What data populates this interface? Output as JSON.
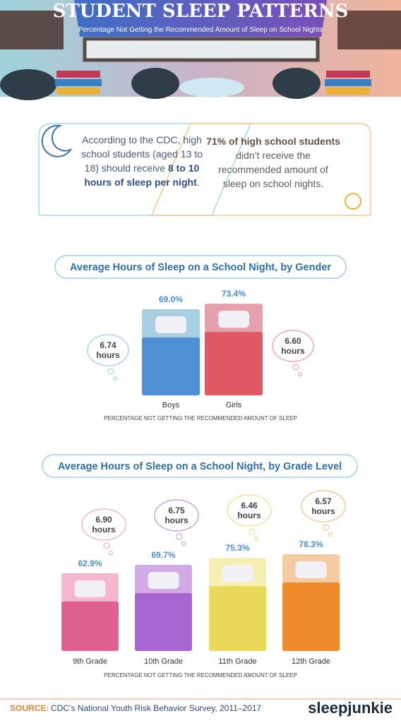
{
  "header": {
    "title": "STUDENT SLEEP PATTERNS",
    "subtitle": "Percentage Not Getting the Recommended Amount of Sleep on School Nights"
  },
  "intro": {
    "left": [
      "According to the CDC, high school students (aged 13 to 18) should receive ",
      "8 to 10 hours of sleep per night",
      "."
    ],
    "right": [
      "71% of high school students",
      " didn’t receive the recommended amount of sleep on school nights."
    ]
  },
  "chart_data": [
    {
      "type": "bar",
      "title": "Average Hours of Sleep on a School Night, by Gender",
      "categories": [
        "Boys",
        "Girls"
      ],
      "values": [
        69.0,
        73.4
      ],
      "value_labels": [
        "69.0%",
        "73.4%"
      ],
      "colors": [
        "#4f8fd6",
        "#e05a66"
      ],
      "head_colors": [
        "#a9d0e2",
        "#e6a2ac"
      ],
      "annotations": [
        "6.74 hours",
        "6.60 hours"
      ],
      "note": "PERCENTAGE NOT GETTING THE RECOMMENDED AMOUNT OF SLEEP"
    },
    {
      "type": "bar",
      "title": "Average Hours of Sleep on a School Night, by Grade Level",
      "categories": [
        "9th Grade",
        "10th Grade",
        "11th Grade",
        "12th Grade"
      ],
      "values": [
        62.9,
        69.7,
        75.3,
        78.3
      ],
      "value_labels": [
        "62.9%",
        "69.7%",
        "75.3%",
        "78.3%"
      ],
      "colors": [
        "#e06092",
        "#a866d2",
        "#e8d95a",
        "#ee8a2a"
      ],
      "head_colors": [
        "#f5b6d0",
        "#d2aae6",
        "#f6efb2",
        "#f4cba2"
      ],
      "annotations": [
        "6.90 hours",
        "6.75 hours",
        "6.46 hours",
        "6.57 hours"
      ],
      "note": "PERCENTAGE NOT GETTING THE RECOMMENDED AMOUNT OF SLEEP"
    }
  ],
  "source": {
    "label": "SOURCE:",
    "text": "CDC’s National Youth Risk Behavior Survey, 2011–2017"
  },
  "logo": "sleepjunkie"
}
